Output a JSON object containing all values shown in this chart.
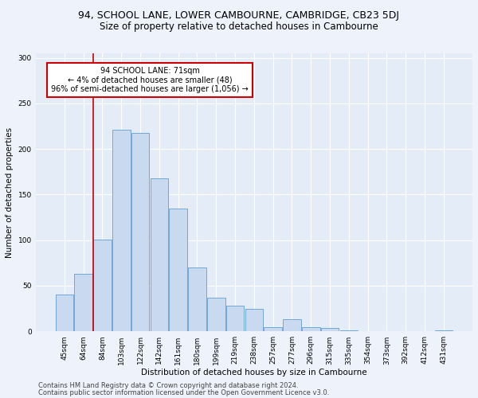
{
  "title_line1": "94, SCHOOL LANE, LOWER CAMBOURNE, CAMBRIDGE, CB23 5DJ",
  "title_line2": "Size of property relative to detached houses in Cambourne",
  "xlabel": "Distribution of detached houses by size in Cambourne",
  "ylabel": "Number of detached properties",
  "categories": [
    "45sqm",
    "64sqm",
    "84sqm",
    "103sqm",
    "122sqm",
    "142sqm",
    "161sqm",
    "180sqm",
    "199sqm",
    "219sqm",
    "238sqm",
    "257sqm",
    "277sqm",
    "296sqm",
    "315sqm",
    "335sqm",
    "354sqm",
    "373sqm",
    "392sqm",
    "412sqm",
    "431sqm"
  ],
  "values": [
    40,
    63,
    101,
    221,
    218,
    168,
    135,
    70,
    37,
    28,
    25,
    5,
    13,
    5,
    4,
    1,
    0,
    0,
    0,
    0,
    1
  ],
  "bar_color": "#c9d9f0",
  "bar_edge_color": "#6fa8d8",
  "annotation_text": "94 SCHOOL LANE: 71sqm\n← 4% of detached houses are smaller (48)\n96% of semi-detached houses are larger (1,056) →",
  "annotation_box_color": "#ffffff",
  "annotation_box_edgecolor": "#cc0000",
  "vline_color": "#cc0000",
  "vline_x_index": 1.5,
  "ylim": [
    0,
    305
  ],
  "yticks": [
    0,
    50,
    100,
    150,
    200,
    250,
    300
  ],
  "footer_line1": "Contains HM Land Registry data © Crown copyright and database right 2024.",
  "footer_line2": "Contains public sector information licensed under the Open Government Licence v3.0.",
  "background_color": "#eef2fa",
  "plot_bg_color": "#e4ecf7",
  "grid_color": "#ffffff",
  "title1_fontsize": 9,
  "title2_fontsize": 8.5,
  "axis_label_fontsize": 7.5,
  "tick_fontsize": 6.5,
  "footer_fontsize": 6,
  "annotation_fontsize": 7
}
